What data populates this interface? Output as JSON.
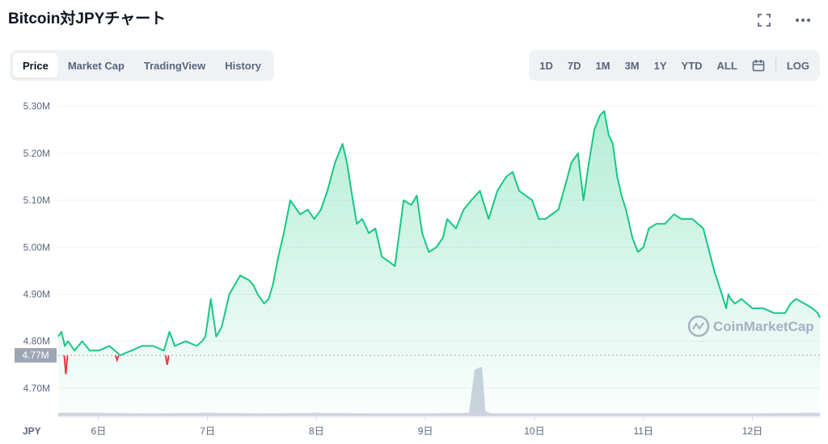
{
  "header": {
    "title": "Bitcoin対JPYチャート",
    "fullscreen_icon": "expand-icon",
    "more_icon": "more-horizontal-icon"
  },
  "tabs": [
    {
      "label": "Price",
      "active": true
    },
    {
      "label": "Market Cap",
      "active": false
    },
    {
      "label": "TradingView",
      "active": false
    },
    {
      "label": "History",
      "active": false
    }
  ],
  "ranges": [
    "1D",
    "7D",
    "1M",
    "3M",
    "1Y",
    "YTD",
    "ALL"
  ],
  "calendar_icon": "calendar-icon",
  "log_label": "LOG",
  "watermark": "CoinMarketCap",
  "colors": {
    "line": "#16c784",
    "down": "#ea3943",
    "volume": "#c5cbd8",
    "current_bg": "#9ea5b3"
  },
  "chart_data": {
    "type": "line",
    "ylim": [
      4.65,
      5.32
    ],
    "y_ticks": [
      {
        "value": 4.7,
        "label": "4.70M"
      },
      {
        "value": 4.8,
        "label": "4.80M"
      },
      {
        "value": 4.9,
        "label": "4.90M"
      },
      {
        "value": 5.0,
        "label": "5.00M"
      },
      {
        "value": 5.1,
        "label": "5.10M"
      },
      {
        "value": 5.2,
        "label": "5.20M"
      },
      {
        "value": 5.3,
        "label": "5.30M"
      }
    ],
    "x_range": [
      5.63,
      12.62
    ],
    "x_ticks": [
      {
        "value": 6,
        "label": "6日"
      },
      {
        "value": 7,
        "label": "7日"
      },
      {
        "value": 8,
        "label": "8日"
      },
      {
        "value": 9,
        "label": "9日"
      },
      {
        "value": 10,
        "label": "10日"
      },
      {
        "value": 11,
        "label": "11日"
      },
      {
        "value": 12,
        "label": "12日"
      }
    ],
    "x_axis_unit": "JPY",
    "current_price": {
      "value": 4.77,
      "label": "4.77M"
    },
    "series": [
      {
        "x": [
          5.63,
          5.66,
          5.69,
          5.72,
          5.78,
          5.85,
          5.92,
          6.0,
          6.1,
          6.2,
          6.3,
          6.4,
          6.5,
          6.6,
          6.65,
          6.7,
          6.8,
          6.9,
          6.95,
          6.98,
          7.0,
          7.03,
          7.08,
          7.13,
          7.2,
          7.3,
          7.38,
          7.42,
          7.46,
          7.52,
          7.56,
          7.6,
          7.65,
          7.7,
          7.76,
          7.85,
          7.92,
          7.98,
          8.04,
          8.1,
          8.17,
          8.24,
          8.28,
          8.32,
          8.37,
          8.42,
          8.48,
          8.54,
          8.6,
          8.66,
          8.72,
          8.8,
          8.87,
          8.92,
          8.97,
          9.03,
          9.1,
          9.16,
          9.2,
          9.28,
          9.35,
          9.42,
          9.5,
          9.58,
          9.66,
          9.74,
          9.8,
          9.86,
          9.92,
          9.98,
          10.04,
          10.1,
          10.16,
          10.22,
          10.28,
          10.34,
          10.4,
          10.45,
          10.5,
          10.55,
          10.6,
          10.64,
          10.68,
          10.72,
          10.76,
          10.8,
          10.84,
          10.9,
          10.95,
          11.0,
          11.05,
          11.12,
          11.2,
          11.28,
          11.35,
          11.45,
          11.55,
          11.65,
          11.72,
          11.76,
          11.78,
          11.8,
          11.84,
          11.9,
          12.0,
          12.1,
          12.2,
          12.3,
          12.35,
          12.4,
          12.48,
          12.55,
          12.6,
          12.62
        ],
        "y": [
          4.81,
          4.82,
          4.79,
          4.8,
          4.78,
          4.8,
          4.78,
          4.78,
          4.79,
          4.77,
          4.78,
          4.79,
          4.79,
          4.78,
          4.82,
          4.79,
          4.8,
          4.79,
          4.8,
          4.81,
          4.84,
          4.89,
          4.81,
          4.83,
          4.9,
          4.94,
          4.93,
          4.92,
          4.9,
          4.88,
          4.89,
          4.92,
          4.98,
          5.03,
          5.1,
          5.07,
          5.08,
          5.06,
          5.08,
          5.12,
          5.18,
          5.22,
          5.18,
          5.12,
          5.05,
          5.06,
          5.03,
          5.04,
          4.98,
          4.97,
          4.96,
          5.1,
          5.09,
          5.11,
          5.03,
          4.99,
          5.0,
          5.02,
          5.06,
          5.04,
          5.08,
          5.1,
          5.12,
          5.06,
          5.12,
          5.15,
          5.16,
          5.12,
          5.11,
          5.1,
          5.06,
          5.06,
          5.07,
          5.08,
          5.13,
          5.18,
          5.2,
          5.1,
          5.18,
          5.25,
          5.28,
          5.29,
          5.24,
          5.22,
          5.15,
          5.11,
          5.08,
          5.02,
          4.99,
          5.0,
          5.04,
          5.05,
          5.05,
          5.07,
          5.06,
          5.06,
          5.04,
          4.95,
          4.9,
          4.87,
          4.9,
          4.89,
          4.88,
          4.89,
          4.87,
          4.87,
          4.86,
          4.86,
          4.88,
          4.89,
          4.88,
          4.87,
          4.86,
          4.85
        ]
      }
    ],
    "down_spikes": [
      {
        "x": 5.7,
        "value": 4.73
      },
      {
        "x": 6.17,
        "value": 4.76
      },
      {
        "x": 6.63,
        "value": 4.75
      }
    ],
    "volume": {
      "x": [
        5.63,
        6.0,
        6.5,
        7.0,
        7.5,
        8.0,
        8.5,
        9.0,
        9.4,
        9.45,
        9.5,
        9.52,
        9.55,
        9.6,
        10.0,
        10.5,
        11.0,
        11.5,
        12.0,
        12.5,
        12.62
      ],
      "values": [
        0.06,
        0.06,
        0.05,
        0.06,
        0.05,
        0.06,
        0.05,
        0.05,
        0.06,
        0.95,
        1.0,
        1.0,
        0.1,
        0.05,
        0.05,
        0.05,
        0.05,
        0.05,
        0.05,
        0.06,
        0.06
      ]
    }
  }
}
